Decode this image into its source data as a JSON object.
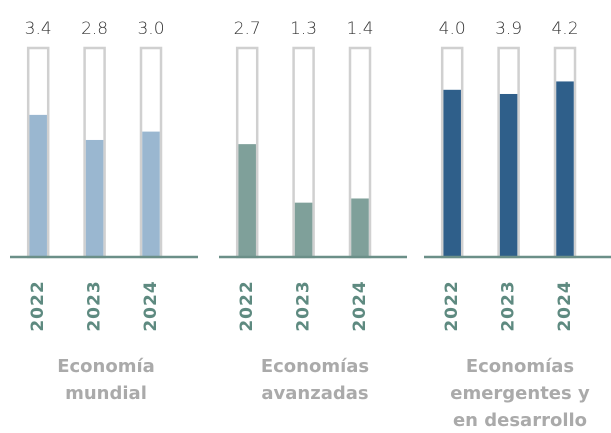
{
  "chart_data": [
    {
      "type": "bar",
      "title": [
        "Economía",
        "mundial"
      ],
      "categories": [
        "2022",
        "2023",
        "2024"
      ],
      "values": [
        3.4,
        2.8,
        3.0
      ],
      "value_labels": [
        "3.4",
        "2.8",
        "3.0"
      ],
      "color": "#9ab7d0",
      "ylim": [
        0,
        5
      ]
    },
    {
      "type": "bar",
      "title": [
        "Economías",
        "avanzadas"
      ],
      "categories": [
        "2022",
        "2023",
        "2024"
      ],
      "values": [
        2.7,
        1.3,
        1.4
      ],
      "value_labels": [
        "2.7",
        "1.3",
        "1.4"
      ],
      "color": "#7fa09a",
      "ylim": [
        0,
        5
      ]
    },
    {
      "type": "bar",
      "title": [
        "Economías",
        "emergentes y",
        "en desarrollo"
      ],
      "categories": [
        "2022",
        "2023",
        "2024"
      ],
      "values": [
        4.0,
        3.9,
        4.2
      ],
      "value_labels": [
        "4.0",
        "3.9",
        "4.2"
      ],
      "color": "#2f5f8a",
      "ylim": [
        0,
        5
      ]
    }
  ]
}
